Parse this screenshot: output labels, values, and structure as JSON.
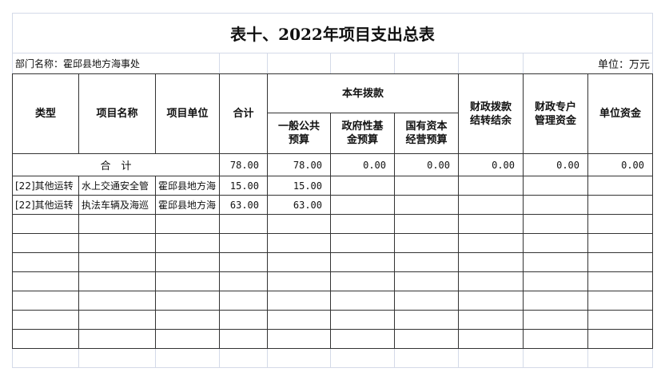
{
  "title": "表十、2022年项目支出总表",
  "department": "部门名称：霍邱县地方海事处",
  "unit": "单位：万元",
  "headers": {
    "type": "类型",
    "project_name": "项目名称",
    "project_unit": "项目单位",
    "total": "合计",
    "current_year": "本年拨款",
    "general_budget": "一般公共预算",
    "gov_fund": "政府性基金预算",
    "state_capital": "国有资本经营预算",
    "carryover": "财政拨款结转结余",
    "special_account": "财政专户管理资金",
    "unit_funds": "单位资金"
  },
  "total_row": {
    "label": "合　计",
    "total": "78.00",
    "general": "78.00",
    "gov_fund": "0.00",
    "state_capital": "0.00",
    "carryover": "0.00",
    "special": "0.00",
    "unit_funds": "0.00"
  },
  "rows": [
    {
      "type": "[22]其他运转",
      "name": "水上交通安全管",
      "unit": "霍邱县地方海",
      "total": "15.00",
      "general": "15.00"
    },
    {
      "type": "[22]其他运转",
      "name": "执法车辆及海巡",
      "unit": "霍邱县地方海",
      "total": "63.00",
      "general": "63.00"
    }
  ]
}
